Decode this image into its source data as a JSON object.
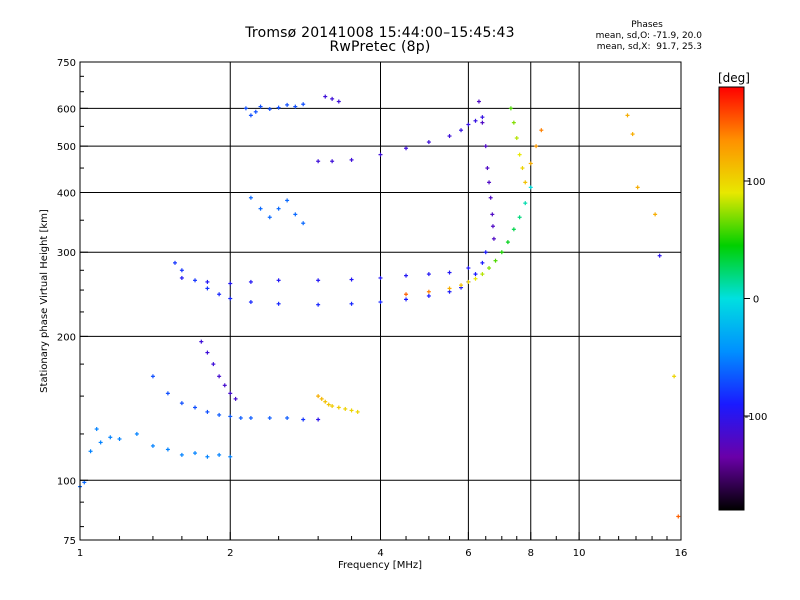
{
  "title_line1": "Tromsø 20141008 15:44:00–15:45:43",
  "title_line2": "RwPretec (8p)",
  "stats": {
    "header": "Phases",
    "line1": "mean, sd,O: -71.9, 20.0",
    "line2": "mean, sd,X:  91.7, 25.3"
  },
  "colorbar": {
    "unit": "[deg]",
    "ticks": [
      {
        "label": "100",
        "value": 100
      },
      {
        "label": "0",
        "value": 0
      },
      {
        "label": "-100",
        "value": -100
      }
    ],
    "range": [
      -180,
      180
    ],
    "colors": [
      "#000000",
      "#6a00a8",
      "#1a1aff",
      "#0090ff",
      "#00e0e0",
      "#00d000",
      "#e8e800",
      "#ff9000",
      "#ff0000"
    ]
  },
  "chart_data": {
    "type": "scatter",
    "title": "Tromsø 20141008 15:44:00–15:45:43 RwPretec (8p)",
    "xlabel": "Frequency [MHz]",
    "ylabel": "Stationary phase Virtual Height [km]",
    "xscale": "log",
    "yscale": "log",
    "xlim": [
      1,
      16
    ],
    "ylim": [
      75,
      750
    ],
    "grid": true,
    "xticks": [
      {
        "label": "1",
        "value": 1
      },
      {
        "label": "2",
        "value": 2
      },
      {
        "label": "4",
        "value": 4
      },
      {
        "label": "6",
        "value": 6
      },
      {
        "label": "8",
        "value": 8
      },
      {
        "label": "10",
        "value": 10
      },
      {
        "label": "16",
        "value": 16
      }
    ],
    "yticks": [
      {
        "label": "75",
        "value": 75
      },
      {
        "label": "100",
        "value": 100
      },
      {
        "label": "200",
        "value": 200
      },
      {
        "label": "300",
        "value": 300
      },
      {
        "label": "400",
        "value": 400
      },
      {
        "label": "500",
        "value": 500
      },
      {
        "label": "600",
        "value": 600
      },
      {
        "label": "750",
        "value": 750
      }
    ],
    "color_quantity": "phase [deg]",
    "series": [
      {
        "x": [
          1.0,
          1.02,
          1.05,
          1.08,
          1.1,
          1.15,
          1.2,
          1.3,
          1.4,
          1.5,
          1.6,
          1.7,
          1.8,
          1.9,
          2.0
        ],
        "y": [
          97,
          99,
          115,
          128,
          120,
          123,
          122,
          125,
          118,
          116,
          113,
          114,
          112,
          113,
          112
        ],
        "phase": [
          -60,
          -60,
          -50,
          -50,
          -50,
          -50,
          -50,
          -50,
          -50,
          -50,
          -50,
          -50,
          -50,
          -50,
          -50
        ]
      },
      {
        "x": [
          1.4,
          1.5,
          1.6,
          1.7,
          1.8,
          1.9,
          2.0,
          2.1,
          2.2,
          2.4,
          2.6,
          2.8,
          3.0
        ],
        "y": [
          165,
          152,
          145,
          142,
          139,
          137,
          136,
          135,
          135,
          135,
          135,
          134,
          134
        ],
        "phase": [
          -70,
          -70,
          -70,
          -70,
          -70,
          -65,
          -65,
          -65,
          -65,
          -65,
          -65,
          -80,
          -100
        ]
      },
      {
        "x": [
          1.75,
          1.8,
          1.85,
          1.9,
          1.95,
          2.0,
          2.05
        ],
        "y": [
          195,
          185,
          175,
          165,
          158,
          152,
          148
        ],
        "phase": [
          -110,
          -110,
          -110,
          -115,
          -115,
          -115,
          -115
        ]
      },
      {
        "x": [
          3.0,
          3.05,
          3.1,
          3.15,
          3.2,
          3.3,
          3.4,
          3.5,
          3.6
        ],
        "y": [
          150,
          148,
          146,
          144,
          143,
          142,
          141,
          140,
          139
        ],
        "phase": [
          120,
          115,
          110,
          108,
          105,
          105,
          102,
          100,
          100
        ]
      },
      {
        "x": [
          1.55,
          1.6,
          1.7,
          1.8,
          1.9,
          2.0,
          2.2,
          2.5,
          3.0,
          3.5,
          4.0,
          4.5,
          5.0,
          5.5,
          5.8,
          6.0,
          6.2,
          6.4,
          6.5
        ],
        "y": [
          285,
          275,
          262,
          252,
          245,
          240,
          236,
          234,
          233,
          234,
          236,
          239,
          243,
          248,
          253,
          260,
          270,
          285,
          300
        ],
        "phase": [
          -80,
          -80,
          -80,
          -80,
          -85,
          -85,
          -85,
          -85,
          -85,
          -85,
          -85,
          -90,
          -90,
          -90,
          -90,
          -90,
          -90,
          -90,
          -90
        ]
      },
      {
        "x": [
          1.6,
          1.8,
          2.0,
          2.2,
          2.5,
          3.0,
          3.5,
          4.0,
          4.5,
          5.0,
          5.5,
          6.0
        ],
        "y": [
          265,
          260,
          258,
          260,
          262,
          262,
          263,
          265,
          268,
          270,
          272,
          278
        ],
        "phase": [
          -95,
          -95,
          -95,
          -95,
          -95,
          -95,
          -95,
          -95,
          -95,
          -95,
          -95,
          -95
        ]
      },
      {
        "x": [
          4.5,
          5.0,
          5.5,
          5.8,
          6.0,
          6.2,
          6.4,
          6.6,
          6.8,
          7.0,
          7.2,
          7.4,
          7.6,
          7.8,
          8.0
        ],
        "y": [
          245,
          248,
          252,
          256,
          260,
          264,
          270,
          278,
          288,
          300,
          315,
          335,
          355,
          380,
          410
        ],
        "phase": [
          150,
          140,
          120,
          110,
          100,
          90,
          80,
          70,
          60,
          50,
          40,
          30,
          20,
          10,
          0
        ]
      },
      {
        "x": [
          3.0,
          3.2,
          3.5,
          4.0,
          4.5,
          5.0,
          5.5,
          5.8,
          6.0,
          6.2,
          6.4
        ],
        "y": [
          465,
          465,
          468,
          480,
          495,
          510,
          525,
          540,
          555,
          565,
          575
        ],
        "phase": [
          -110,
          -110,
          -110,
          -110,
          -110,
          -110,
          -110,
          -105,
          -105,
          -105,
          -105
        ]
      },
      {
        "x": [
          6.3,
          6.4,
          6.5,
          6.55,
          6.6,
          6.65,
          6.7,
          6.72,
          6.75
        ],
        "y": [
          620,
          560,
          500,
          450,
          420,
          390,
          360,
          340,
          320
        ],
        "phase": [
          -120,
          -120,
          -120,
          -120,
          -120,
          -120,
          -120,
          -120,
          -120
        ]
      },
      {
        "x": [
          7.3,
          7.4,
          7.5,
          7.6,
          7.7,
          7.8,
          8.0,
          8.2,
          8.4
        ],
        "y": [
          600,
          560,
          520,
          480,
          450,
          420,
          460,
          500,
          540
        ],
        "phase": [
          60,
          70,
          80,
          90,
          100,
          110,
          120,
          130,
          140
        ]
      },
      {
        "x": [
          2.15,
          2.2,
          2.25,
          2.3,
          2.4,
          2.5,
          2.6,
          2.7,
          2.8
        ],
        "y": [
          600,
          580,
          590,
          605,
          598,
          602,
          610,
          605,
          612
        ],
        "phase": [
          -70,
          -70,
          -70,
          -70,
          -70,
          -70,
          -70,
          -70,
          -70
        ]
      },
      {
        "x": [
          2.2,
          2.3,
          2.4,
          2.5,
          2.6,
          2.7,
          2.8
        ],
        "y": [
          390,
          370,
          355,
          370,
          385,
          360,
          345
        ],
        "phase": [
          -60,
          -60,
          -60,
          -60,
          -60,
          -60,
          -60
        ]
      },
      {
        "x": [
          3.1,
          3.2,
          3.3
        ],
        "y": [
          635,
          628,
          620
        ],
        "phase": [
          -110,
          -110,
          -110
        ]
      },
      {
        "x": [
          12.5,
          12.8,
          13.1,
          14.2,
          14.5,
          15.5,
          15.8
        ],
        "y": [
          580,
          530,
          410,
          360,
          295,
          165,
          84
        ],
        "phase": [
          120,
          120,
          120,
          120,
          -100,
          100,
          150
        ]
      }
    ]
  }
}
